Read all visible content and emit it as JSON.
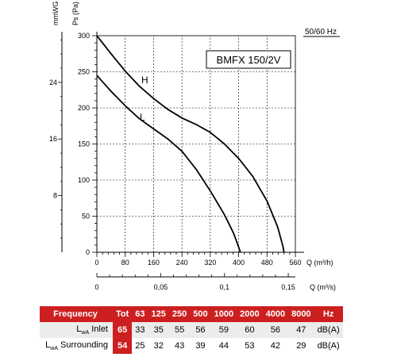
{
  "chart_data": {
    "type": "line",
    "model_label": "BMFX 150/2V",
    "frequency_label": "50/60 Hz",
    "y_label": "Ps (Pa)",
    "y2_label": "mmWG",
    "x_label": "Q (m³/h)",
    "x2_label": "Q (m³/s)",
    "xlim": [
      0,
      560
    ],
    "ylim": [
      0,
      300
    ],
    "x_ticks": [
      "0",
      "80",
      "160",
      "240",
      "320",
      "400",
      "480",
      "560"
    ],
    "y_ticks": [
      "0",
      "50",
      "100",
      "150",
      "200",
      "250",
      "300"
    ],
    "y2_ticks": [
      "8",
      "16",
      "24"
    ],
    "x2_ticks": [
      "0",
      "0,05",
      "0,1",
      "0,15"
    ],
    "series": [
      {
        "name": "H",
        "color": "#000000",
        "x": [
          0,
          40,
          80,
          120,
          160,
          200,
          240,
          280,
          320,
          360,
          400,
          440,
          480,
          510,
          525,
          528
        ],
        "y": [
          300,
          275,
          251,
          230,
          213,
          198,
          186,
          177,
          166,
          150,
          130,
          105,
          71,
          35,
          8,
          0
        ]
      },
      {
        "name": "L",
        "color": "#000000",
        "x": [
          0,
          40,
          80,
          120,
          160,
          200,
          240,
          280,
          320,
          360,
          385,
          398,
          405
        ],
        "y": [
          245,
          223,
          203,
          185,
          171,
          157,
          140,
          115,
          85,
          52,
          27,
          10,
          0
        ]
      }
    ]
  },
  "table": {
    "header": {
      "name": "Frequency",
      "tot": "Tot",
      "bands": [
        "63",
        "125",
        "250",
        "500",
        "1000",
        "2000",
        "4000",
        "8000"
      ],
      "unit": "Hz"
    },
    "rows": [
      {
        "name_prefix": "L",
        "name_sub": "wA",
        "name_suffix": " Inlet",
        "tot": "65",
        "values": [
          "33",
          "35",
          "55",
          "56",
          "59",
          "60",
          "56",
          "47"
        ],
        "unit": "dB(A)"
      },
      {
        "name_prefix": "L",
        "name_sub": "wA",
        "name_suffix": " Surrounding",
        "tot": "54",
        "values": [
          "25",
          "32",
          "43",
          "39",
          "44",
          "53",
          "42",
          "29"
        ],
        "unit": "dB(A)"
      }
    ]
  }
}
